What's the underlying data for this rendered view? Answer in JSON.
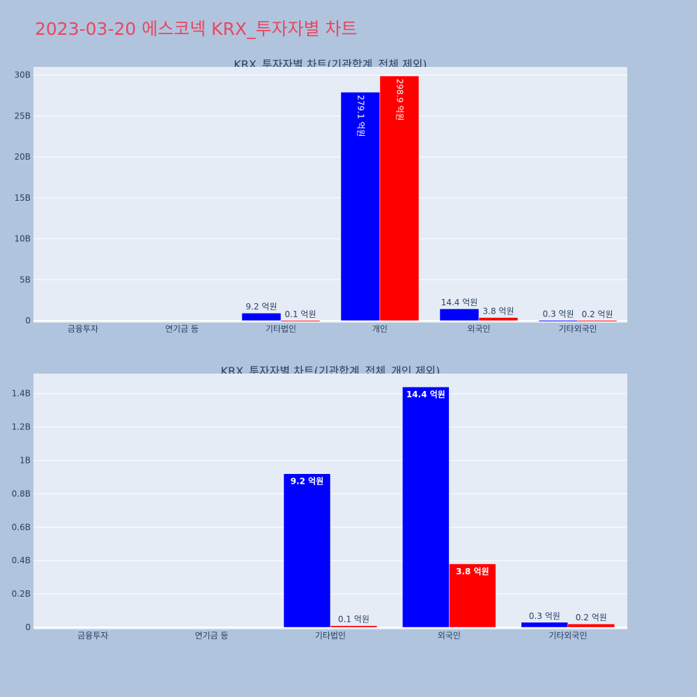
{
  "title": "2023-03-20 에스코넥 KRX_투자자별 차트",
  "colors": {
    "series1": "#0000ff",
    "series2": "#ff0000",
    "plot_bg": "#e5ecf6",
    "page_bg": "#b0c4de",
    "title": "#e8475f",
    "axis_text": "#2a3f5f"
  },
  "chart_data": [
    {
      "type": "bar",
      "title": "KRX_투자자별 차트(기관합계_전체 제외)",
      "categories": [
        "금융투자",
        "연기금 등",
        "기타법인",
        "개인",
        "외국인",
        "기타외국인"
      ],
      "series": [
        {
          "values": [
            0,
            0,
            920000000,
            27910000000,
            1440000000,
            30000000
          ],
          "labels": [
            "",
            "",
            "9.2 억원",
            "279.1 억원",
            "14.4 억원",
            "0.3 억원"
          ]
        },
        {
          "values": [
            0,
            0,
            10000000,
            29890000000,
            380000000,
            20000000
          ],
          "labels": [
            "",
            "",
            "0.1 억원",
            "298.9 억원",
            "3.8 억원",
            "0.2 억원"
          ]
        }
      ],
      "ylim": [
        0,
        31000000000
      ],
      "yticks": [
        0,
        5000000000,
        10000000000,
        15000000000,
        20000000000,
        25000000000,
        30000000000
      ],
      "ytick_labels": [
        "0",
        "5B",
        "10B",
        "15B",
        "20B",
        "25B",
        "30B"
      ],
      "grid": true,
      "xlabel": "",
      "ylabel": ""
    },
    {
      "type": "bar",
      "title": "KRX_투자자별 차트(기관합계_전체_개인 제외)",
      "categories": [
        "금융투자",
        "연기금 등",
        "기타법인",
        "외국인",
        "기타외국인"
      ],
      "series": [
        {
          "values": [
            0,
            0,
            920000000,
            1440000000,
            30000000
          ],
          "labels": [
            "",
            "",
            "9.2 억원",
            "14.4 억원",
            "0.3 억원"
          ]
        },
        {
          "values": [
            0,
            0,
            10000000,
            380000000,
            20000000
          ],
          "labels": [
            "",
            "",
            "0.1 억원",
            "3.8 억원",
            "0.2 억원"
          ]
        }
      ],
      "ylim": [
        0,
        1520000000
      ],
      "yticks": [
        0,
        200000000,
        400000000,
        600000000,
        800000000,
        1000000000,
        1200000000,
        1400000000
      ],
      "ytick_labels": [
        "0",
        "0.2B",
        "0.4B",
        "0.6B",
        "0.8B",
        "1B",
        "1.2B",
        "1.4B"
      ],
      "grid": true,
      "xlabel": "",
      "ylabel": ""
    }
  ]
}
